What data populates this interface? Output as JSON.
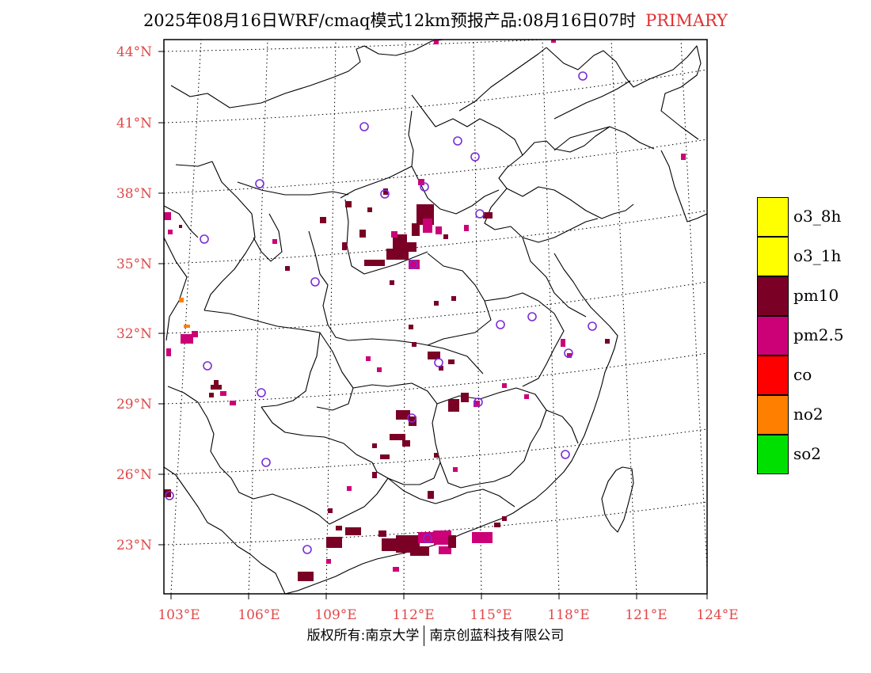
{
  "title": {
    "main": "2025年08月16日WRF/cmaq模式12km预报产品:08月16日07时",
    "tag": "PRIMARY"
  },
  "axes": {
    "lat_labels": [
      "44°N",
      "41°N",
      "38°N",
      "35°N",
      "32°N",
      "29°N",
      "26°N",
      "23°N"
    ],
    "lon_labels": [
      "103°E",
      "106°E",
      "109°E",
      "112°E",
      "115°E",
      "118°E",
      "121°E",
      "124°E"
    ]
  },
  "legend": {
    "items": [
      {
        "label": "o3_8h",
        "color": "#ffff00"
      },
      {
        "label": "o3_1h",
        "color": "#ffff00"
      },
      {
        "label": "pm10",
        "color": "#7a0026"
      },
      {
        "label": "pm2.5",
        "color": "#cc0077"
      },
      {
        "label": "co",
        "color": "#ff0000"
      },
      {
        "label": "no2",
        "color": "#ff7f00"
      },
      {
        "label": "so2",
        "color": "#00e000"
      }
    ]
  },
  "colors": {
    "pm10": "#7a0026",
    "pm25": "#cc0077",
    "no2": "#ff7f00",
    "station": "#7b2cd6",
    "tick_label": "#e04848"
  },
  "footer": {
    "left": "版权所有:南京大学",
    "right": "南京创蓝科技有限公司"
  }
}
